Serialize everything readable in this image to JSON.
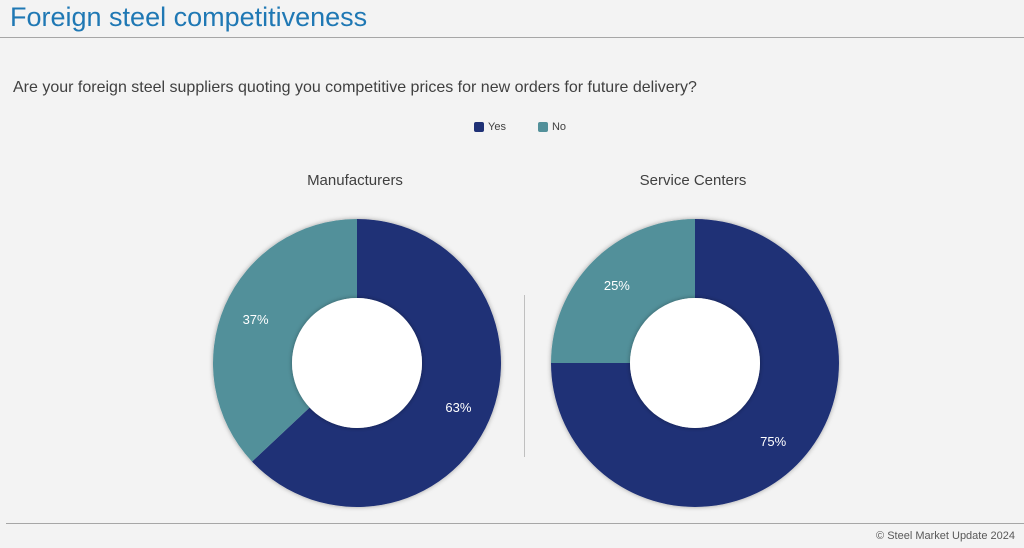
{
  "header": {
    "title": "Foreign steel competitiveness"
  },
  "question": "Are your foreign steel suppliers quoting you competitive prices for new orders for future delivery?",
  "legend": [
    {
      "label": "Yes",
      "color": "#1f3176"
    },
    {
      "label": "No",
      "color": "#52909a"
    }
  ],
  "chart_data": [
    {
      "type": "pie",
      "style": "donut",
      "title": "Manufacturers",
      "categories": [
        "Yes",
        "No"
      ],
      "values": [
        63,
        37
      ],
      "labels": [
        "63%",
        "37%"
      ],
      "colors": [
        "#1f3176",
        "#52909a"
      ]
    },
    {
      "type": "pie",
      "style": "donut",
      "title": "Service Centers",
      "categories": [
        "Yes",
        "No"
      ],
      "values": [
        75,
        25
      ],
      "labels": [
        "75%",
        "25%"
      ],
      "colors": [
        "#1f3176",
        "#52909a"
      ]
    }
  ],
  "footer": {
    "copyright": "© Steel Market Update 2024"
  }
}
